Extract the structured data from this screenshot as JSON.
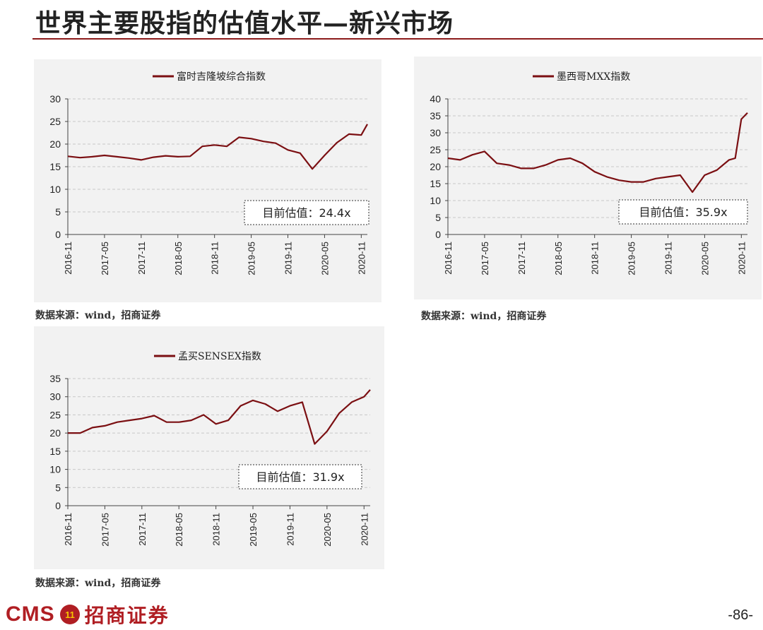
{
  "page": {
    "title": "世界主要股指的估值水平—新兴市场",
    "page_number": "-86-",
    "logo": {
      "latin": "CMS",
      "badge": "11",
      "chinese": "招商证券"
    }
  },
  "colors": {
    "line": "#7B0F12",
    "accent": "#8B1A1A",
    "panel_bg": "#f2f2f2",
    "grid": "#c8c8c8"
  },
  "sources": [
    "数据来源：wind，招商证券",
    "数据来源：wind，招商证券",
    "数据来源：wind，招商证券"
  ],
  "chart_data": [
    {
      "type": "line",
      "legend": "富时吉隆坡综合指数",
      "legend_position": "top-center",
      "annotation": "目前估值：24.4x",
      "x_ticks": [
        "2016-11",
        "2017-05",
        "2017-11",
        "2018-05",
        "2018-11",
        "2019-05",
        "2019-11",
        "2020-05",
        "2020-11"
      ],
      "y_ticks": [
        0,
        5,
        10,
        15,
        20,
        25,
        30
      ],
      "ylim": [
        0,
        30
      ],
      "grid": true,
      "series": [
        {
          "x": [
            "2016-11",
            "2017-01",
            "2017-03",
            "2017-05",
            "2017-07",
            "2017-09",
            "2017-11",
            "2018-01",
            "2018-03",
            "2018-05",
            "2018-07",
            "2018-09",
            "2018-11",
            "2019-01",
            "2019-03",
            "2019-05",
            "2019-07",
            "2019-09",
            "2019-11",
            "2020-01",
            "2020-03",
            "2020-05",
            "2020-07",
            "2020-09",
            "2020-11",
            "2020-12"
          ],
          "values": [
            17.3,
            17.0,
            17.2,
            17.5,
            17.2,
            16.9,
            16.5,
            17.1,
            17.4,
            17.2,
            17.3,
            19.5,
            19.8,
            19.5,
            21.5,
            21.2,
            20.6,
            20.2,
            18.7,
            18.0,
            14.5,
            17.5,
            20.3,
            22.2,
            22.0,
            24.4
          ]
        }
      ]
    },
    {
      "type": "line",
      "legend": "墨西哥MXX指数",
      "legend_position": "top-center",
      "annotation": "目前估值：35.9x",
      "x_ticks": [
        "2016-11",
        "2017-05",
        "2017-11",
        "2018-05",
        "2018-11",
        "2019-05",
        "2019-11",
        "2020-05",
        "2020-11"
      ],
      "y_ticks": [
        0,
        5,
        10,
        15,
        20,
        25,
        30,
        35,
        40
      ],
      "ylim": [
        0,
        40
      ],
      "grid": true,
      "series": [
        {
          "x": [
            "2016-11",
            "2017-01",
            "2017-03",
            "2017-05",
            "2017-07",
            "2017-09",
            "2017-11",
            "2018-01",
            "2018-03",
            "2018-05",
            "2018-07",
            "2018-09",
            "2018-11",
            "2019-01",
            "2019-03",
            "2019-05",
            "2019-07",
            "2019-09",
            "2019-11",
            "2020-01",
            "2020-03",
            "2020-05",
            "2020-07",
            "2020-09",
            "2020-10",
            "2020-11",
            "2020-12"
          ],
          "values": [
            22.5,
            22.0,
            23.5,
            24.5,
            21.0,
            20.5,
            19.5,
            19.5,
            20.5,
            22.0,
            22.5,
            21.0,
            18.5,
            17.0,
            16.0,
            15.5,
            15.5,
            16.5,
            17.0,
            17.5,
            12.5,
            17.5,
            19.0,
            22.0,
            22.5,
            34.0,
            35.9
          ]
        }
      ]
    },
    {
      "type": "line",
      "legend": "孟买SENSEX指数",
      "legend_position": "top-center",
      "annotation": "目前估值：31.9x",
      "x_ticks": [
        "2016-11",
        "2017-05",
        "2017-11",
        "2018-05",
        "2018-11",
        "2019-05",
        "2019-11",
        "2020-05",
        "2020-11"
      ],
      "y_ticks": [
        0,
        5,
        10,
        15,
        20,
        25,
        30,
        35
      ],
      "ylim": [
        0,
        35
      ],
      "grid": true,
      "series": [
        {
          "x": [
            "2016-11",
            "2017-01",
            "2017-03",
            "2017-05",
            "2017-07",
            "2017-09",
            "2017-11",
            "2018-01",
            "2018-03",
            "2018-05",
            "2018-07",
            "2018-09",
            "2018-11",
            "2019-01",
            "2019-03",
            "2019-05",
            "2019-07",
            "2019-09",
            "2019-11",
            "2020-01",
            "2020-03",
            "2020-05",
            "2020-07",
            "2020-09",
            "2020-11",
            "2020-12"
          ],
          "values": [
            20.0,
            20.0,
            21.5,
            22.0,
            23.0,
            23.5,
            24.0,
            24.8,
            23.0,
            23.0,
            23.5,
            25.0,
            22.5,
            23.5,
            27.5,
            29.0,
            28.0,
            26.0,
            27.5,
            28.5,
            17.0,
            20.5,
            25.5,
            28.5,
            30.0,
            31.9
          ]
        }
      ]
    }
  ]
}
